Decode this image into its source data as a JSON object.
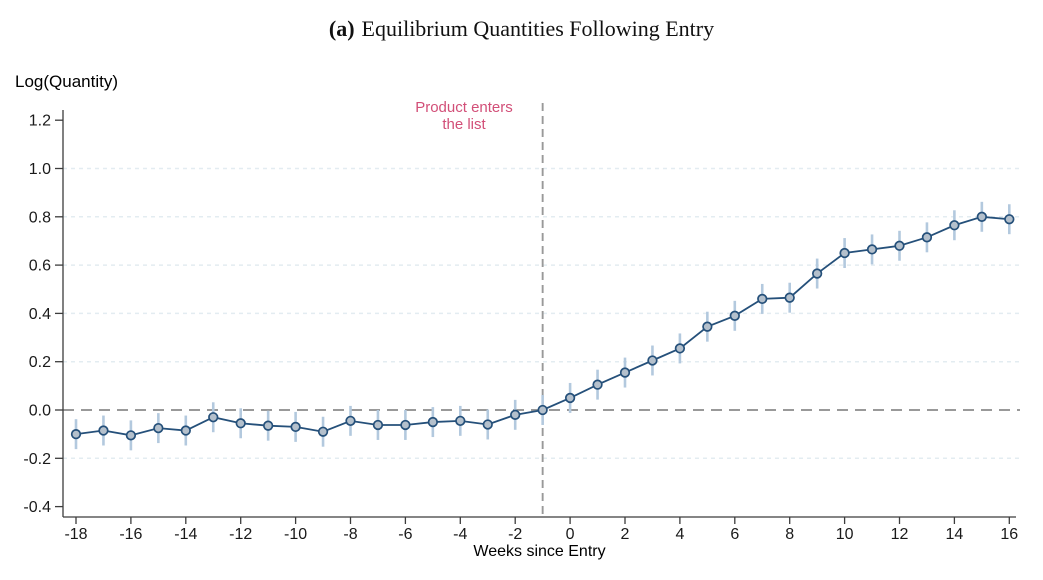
{
  "title": {
    "prefix": "(a)",
    "rest": "Equilibrium Quantities Following Entry"
  },
  "annotation": {
    "line1": "Product enters",
    "line2": "the list",
    "color": "#d24f78"
  },
  "chart_data": {
    "type": "line",
    "title": "(a) Equilibrium Quantities Following Entry",
    "xlabel": "Weeks since Entry",
    "ylabel": "Log(Quantity)",
    "x": [
      -18,
      -17,
      -16,
      -15,
      -14,
      -13,
      -12,
      -11,
      -10,
      -9,
      -8,
      -7,
      -6,
      -5,
      -4,
      -3,
      -2,
      -1,
      0,
      1,
      2,
      3,
      4,
      5,
      6,
      7,
      8,
      9,
      10,
      11,
      12,
      13,
      14,
      15,
      16
    ],
    "values": [
      -0.1,
      -0.085,
      -0.105,
      -0.075,
      -0.085,
      -0.03,
      -0.055,
      -0.065,
      -0.07,
      -0.09,
      -0.045,
      -0.062,
      -0.062,
      -0.05,
      -0.045,
      -0.06,
      -0.02,
      0.0,
      0.05,
      0.105,
      0.155,
      0.205,
      0.255,
      0.345,
      0.39,
      0.46,
      0.465,
      0.565,
      0.65,
      0.665,
      0.68,
      0.715,
      0.765,
      0.8,
      0.79
    ],
    "ci_halfwidth": 0.062,
    "x_ticks": [
      -18,
      -16,
      -14,
      -12,
      -10,
      -8,
      -6,
      -4,
      -2,
      0,
      2,
      4,
      6,
      8,
      10,
      12,
      14,
      16
    ],
    "y_ticks": [
      -0.4,
      -0.2,
      0.0,
      0.2,
      0.4,
      0.6,
      0.8,
      1.0,
      1.2
    ],
    "gridline_y": [
      -0.2,
      0.2,
      0.4,
      0.6,
      0.8,
      1.0
    ],
    "ylim": [
      -0.45,
      1.27
    ],
    "xlim": [
      -18.5,
      16.3
    ],
    "reference_lines": {
      "horizontal_y": 0.0,
      "vertical_x": -1
    },
    "legend": "none",
    "grid": "horizontal dashed",
    "colors": {
      "line": "#25507a",
      "marker_fill": "#b4c0cc",
      "marker_edge": "#25507a",
      "ci_bar": "#b3c9de",
      "gridline": "#e3ecf1",
      "reference_dash": "#999999",
      "axis": "#3c3c3c",
      "tick_label": "#1a1a1a",
      "annotation": "#d24f78"
    }
  }
}
